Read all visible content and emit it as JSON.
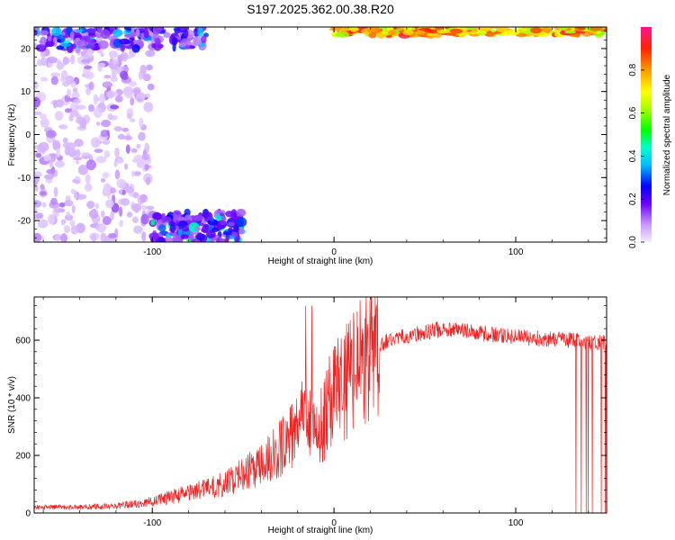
{
  "title": "S197.2025.362.00.38.R20",
  "chart_data": [
    {
      "type": "heatmap",
      "xlabel": "Height of straight line (km)",
      "ylabel": "Frequency (Hz)",
      "xlim": [
        -165,
        150
      ],
      "ylim": [
        -25,
        25
      ],
      "x_ticks": [
        -100,
        0,
        100
      ],
      "y_ticks": [
        -20,
        -10,
        0,
        10,
        20
      ],
      "colorbar": {
        "label": "Normalized spectral amplitude",
        "range": [
          0,
          1
        ],
        "ticks": [
          "0.0",
          "0.2",
          "0.4",
          "0.6",
          "0.8"
        ]
      },
      "features": [
        {
          "region": "scattered low-amplitude noise",
          "x": [
            -165,
            -100
          ],
          "y": [
            -25,
            25
          ],
          "amplitude": 0.1
        },
        {
          "region": "cluster at negative frequencies",
          "x": [
            -100,
            -50
          ],
          "y": [
            -25,
            -18
          ],
          "amplitude": 0.35
        },
        {
          "region": "cluster at positive frequencies",
          "x": [
            -165,
            -70
          ],
          "y": [
            20,
            25
          ],
          "amplitude": 0.3
        },
        {
          "region": "strong band near upper frequency limit",
          "x": [
            0,
            150
          ],
          "y": [
            23,
            25
          ],
          "amplitude": 0.95
        }
      ]
    },
    {
      "type": "line",
      "xlabel": "Height of straight line (km)",
      "ylabel": "SNR (10 * v/v)",
      "xlim": [
        -165,
        150
      ],
      "ylim": [
        0,
        750
      ],
      "x_ticks": [
        -100,
        0,
        100
      ],
      "y_ticks": [
        0,
        200,
        400,
        600
      ],
      "series": [
        {
          "color": "#ee2222",
          "x": [
            -165,
            -140,
            -120,
            -100,
            -80,
            -60,
            -40,
            -30,
            -20,
            -14,
            -10,
            0,
            10,
            20,
            30,
            60,
            100,
            130,
            150
          ],
          "y": [
            20,
            20,
            25,
            40,
            70,
            100,
            170,
            220,
            300,
            350,
            250,
            420,
            480,
            550,
            600,
            640,
            610,
            600,
            590
          ]
        }
      ]
    }
  ]
}
